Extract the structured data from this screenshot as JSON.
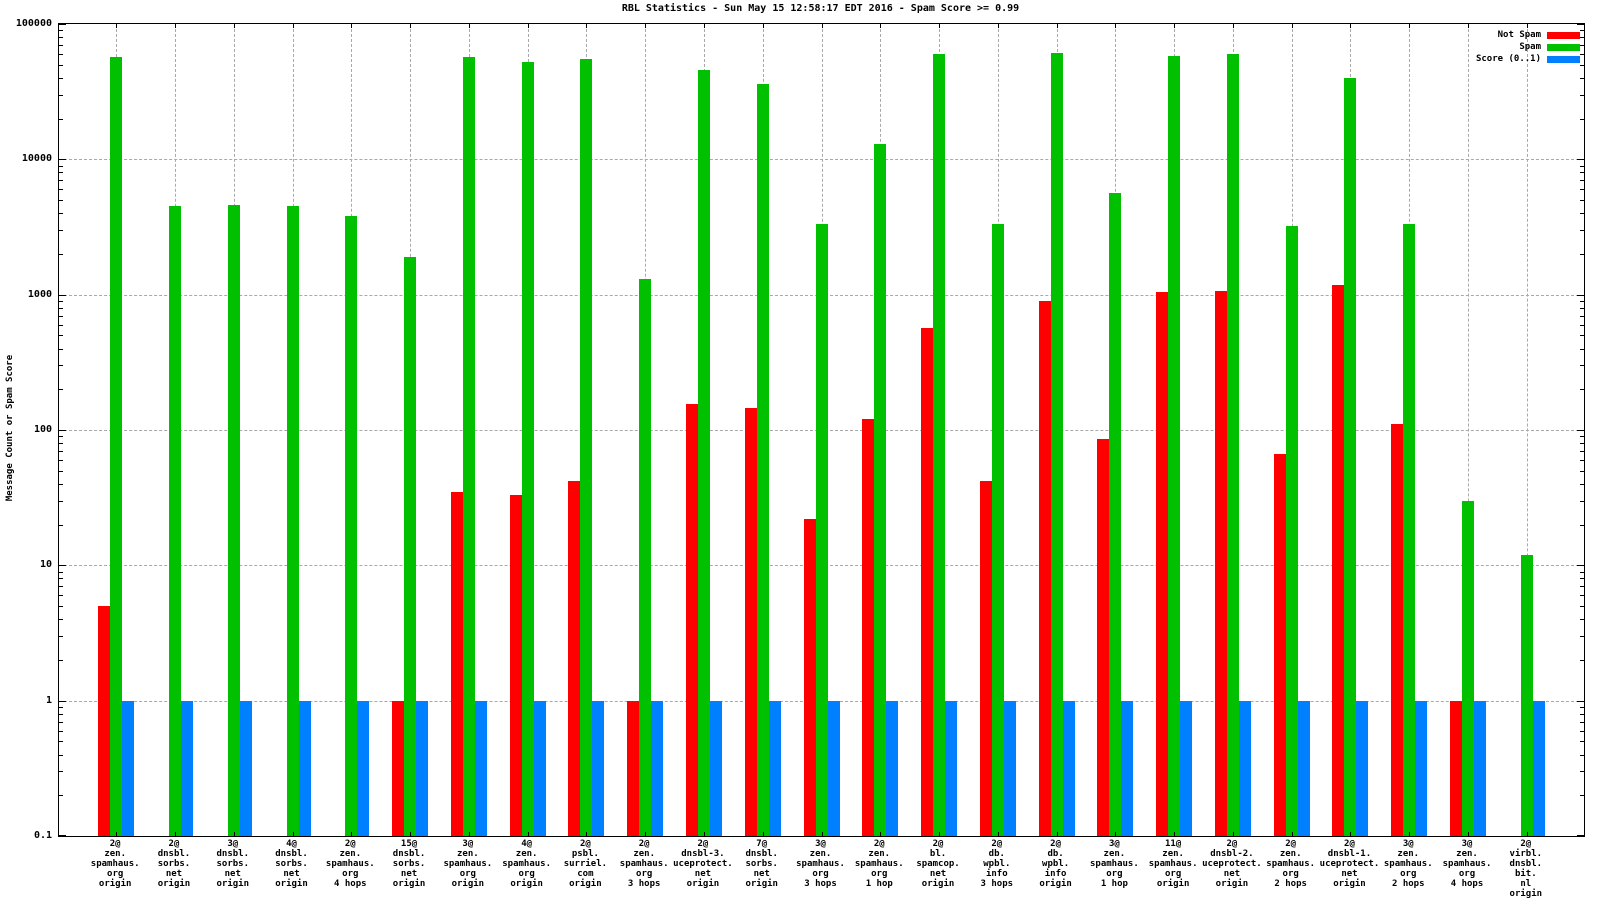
{
  "chart_data": {
    "type": "bar",
    "title": "RBL Statistics - Sun May 15 12:58:17 EDT 2016 - Spam Score >= 0.99",
    "ylabel": "Message Count or Spam Score",
    "yscale": "log",
    "ylim": [
      0.1,
      100000
    ],
    "ytick_labels": [
      "100000",
      "10000",
      "1000",
      "100",
      "10",
      "1",
      "0.1"
    ],
    "grid": true,
    "legend_position": "top-right-inside",
    "categories": [
      [
        "2@",
        "zen.",
        "spamhaus.",
        "org",
        "origin"
      ],
      [
        "2@",
        "dnsbl.",
        "sorbs.",
        "net",
        "origin"
      ],
      [
        "3@",
        "dnsbl.",
        "sorbs.",
        "net",
        "origin"
      ],
      [
        "4@",
        "dnsbl.",
        "sorbs.",
        "net",
        "origin"
      ],
      [
        "2@",
        "zen.",
        "spamhaus.",
        "org",
        "4 hops"
      ],
      [
        "15@",
        "dnsbl.",
        "sorbs.",
        "net",
        "origin"
      ],
      [
        "3@",
        "zen.",
        "spamhaus.",
        "org",
        "origin"
      ],
      [
        "4@",
        "zen.",
        "spamhaus.",
        "org",
        "origin"
      ],
      [
        "2@",
        "psbl.",
        "surriel.",
        "com",
        "origin"
      ],
      [
        "2@",
        "zen.",
        "spamhaus.",
        "org",
        "3 hops"
      ],
      [
        "2@",
        "dnsbl-3.",
        "uceprotect.",
        "net",
        "origin"
      ],
      [
        "7@",
        "dnsbl.",
        "sorbs.",
        "net",
        "origin"
      ],
      [
        "3@",
        "zen.",
        "spamhaus.",
        "org",
        "3 hops"
      ],
      [
        "2@",
        "zen.",
        "spamhaus.",
        "org",
        "1 hop"
      ],
      [
        "2@",
        "bl.",
        "spamcop.",
        "net",
        "origin"
      ],
      [
        "2@",
        "db.",
        "wpbl.",
        "info",
        "3 hops"
      ],
      [
        "2@",
        "db.",
        "wpbl.",
        "info",
        "origin"
      ],
      [
        "3@",
        "zen.",
        "spamhaus.",
        "org",
        "1 hop"
      ],
      [
        "11@",
        "zen.",
        "spamhaus.",
        "org",
        "origin"
      ],
      [
        "2@",
        "dnsbl-2.",
        "uceprotect.",
        "net",
        "origin"
      ],
      [
        "2@",
        "zen.",
        "spamhaus.",
        "org",
        "2 hops"
      ],
      [
        "2@",
        "dnsbl-1.",
        "uceprotect.",
        "net",
        "origin"
      ],
      [
        "3@",
        "zen.",
        "spamhaus.",
        "org",
        "2 hops"
      ],
      [
        "3@",
        "zen.",
        "spamhaus.",
        "org",
        "4 hops"
      ],
      [
        "2@",
        "virbl.",
        "dnsbl.",
        "bit.",
        "nl",
        "origin"
      ]
    ],
    "series": [
      {
        "name": "Not Spam",
        "color": "#ff0000",
        "values": [
          5,
          null,
          null,
          null,
          null,
          1,
          35,
          33,
          42,
          1,
          155,
          145,
          22,
          120,
          570,
          42,
          900,
          86,
          1050,
          1070,
          66,
          1180,
          110,
          1,
          null
        ]
      },
      {
        "name": "Spam",
        "color": "#00c000",
        "values": [
          57000,
          4500,
          4600,
          4550,
          3800,
          1900,
          57000,
          52000,
          55000,
          1300,
          46000,
          36000,
          3300,
          13000,
          60000,
          3300,
          61000,
          5650,
          58000,
          60000,
          3200,
          40000,
          3350,
          30,
          12
        ]
      },
      {
        "name": "Score (0..1)",
        "color": "#0080ff",
        "values": [
          1,
          1,
          1,
          1,
          1,
          1,
          1,
          1,
          1,
          1,
          1,
          1,
          1,
          1,
          1,
          1,
          1,
          1,
          1,
          1,
          1,
          1,
          1,
          1,
          1
        ]
      }
    ]
  }
}
